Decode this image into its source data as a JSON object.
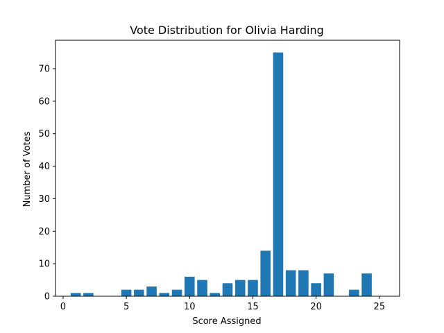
{
  "chart_data": {
    "type": "bar",
    "title": "Vote Distribution for Olivia Harding",
    "xlabel": "Score Assigned",
    "ylabel": "Number of Votes",
    "x": [
      1,
      2,
      5,
      6,
      7,
      8,
      9,
      10,
      11,
      12,
      13,
      14,
      15,
      16,
      17,
      18,
      19,
      20,
      21,
      23,
      24
    ],
    "values": [
      1,
      1,
      2,
      2,
      3,
      1,
      2,
      6,
      5,
      1,
      4,
      5,
      5,
      14,
      75,
      8,
      8,
      4,
      7,
      2,
      7
    ],
    "xlim": [
      -0.6,
      26.6
    ],
    "ylim": [
      0,
      78.75
    ],
    "xticks": [
      0,
      5,
      10,
      15,
      20,
      25
    ],
    "yticks": [
      0,
      10,
      20,
      30,
      40,
      50,
      60,
      70
    ],
    "grid": false,
    "bar_color": "#1f77b4"
  }
}
